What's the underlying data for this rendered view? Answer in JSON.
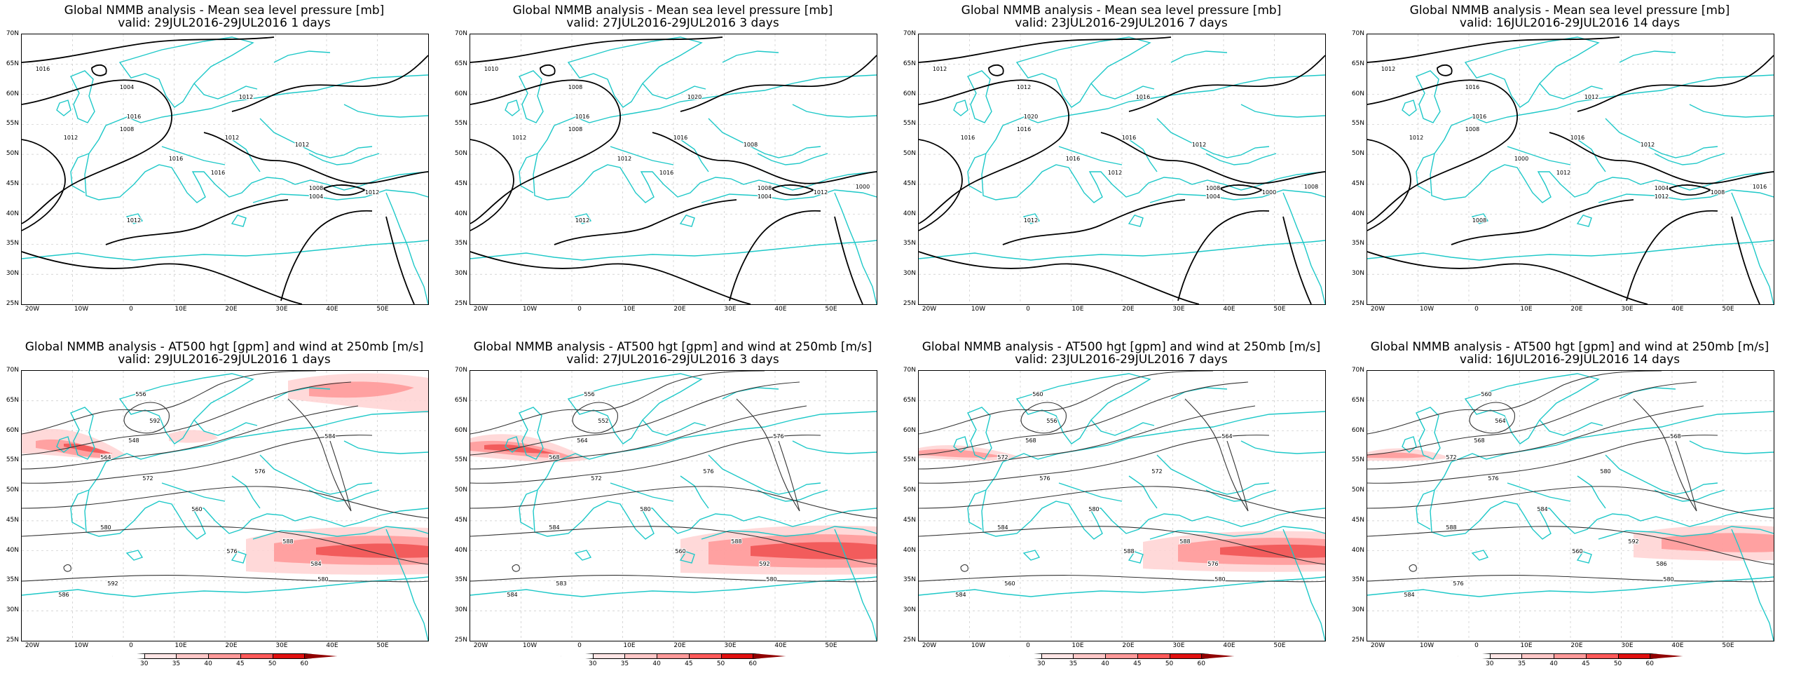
{
  "colors": {
    "coast": "#1ec8c8",
    "contour": "#000000",
    "grid": "#c8c8c8",
    "wind_light": "#ffd2d2",
    "wind_mid": "#ff9696",
    "wind_strong": "#f05050"
  },
  "lat_labels": [
    "70N",
    "65N",
    "60N",
    "55N",
    "50N",
    "45N",
    "40N",
    "35N",
    "30N",
    "25N"
  ],
  "lon_labels": [
    "20W",
    "10W",
    "0",
    "10E",
    "20E",
    "30E",
    "40E",
    "50E"
  ],
  "colorbar": {
    "labels": [
      "30",
      "35",
      "40",
      "45",
      "50",
      "60"
    ],
    "colors": [
      "#ffffff",
      "#ffe6e6",
      "#ffc8c8",
      "#ff9a9a",
      "#ff5a5a",
      "#e01010",
      "#900000"
    ]
  },
  "panels": [
    {
      "title": "Global NMMB analysis - Mean sea level pressure [mb]",
      "valid": "valid: 29JUL2016-29JUL2016   1 days",
      "contour_labels": [
        "1016",
        "1004",
        "1008",
        "1012",
        "1016",
        "1012",
        "1012",
        "1016",
        "1012",
        "1008",
        "1004",
        "1012",
        "1016",
        "1012"
      ]
    },
    {
      "title": "Global NMMB analysis - Mean sea level pressure [mb]",
      "valid": "valid: 27JUL2016-29JUL2016   3 days",
      "contour_labels": [
        "1010",
        "1008",
        "1008",
        "1012",
        "1016",
        "1020",
        "1016",
        "1016",
        "1012",
        "1008",
        "1004",
        "1012",
        "1012",
        "1008",
        "1000"
      ]
    },
    {
      "title": "Global NMMB analysis - Mean sea level pressure [mb]",
      "valid": "valid: 23JUL2016-29JUL2016   7 days",
      "contour_labels": [
        "1012",
        "1012",
        "1016",
        "1016",
        "1020",
        "1016",
        "1016",
        "1012",
        "1012",
        "1008",
        "1004",
        "1000",
        "1016",
        "1012",
        "1008"
      ]
    },
    {
      "title": "Global NMMB analysis - Mean sea level pressure [mb]",
      "valid": "valid: 16JUL2016-29JUL2016   14 days",
      "contour_labels": [
        "1012",
        "1016",
        "1008",
        "1012",
        "1016",
        "1012",
        "1016",
        "1012",
        "1008",
        "1004",
        "1012",
        "1008",
        "1000",
        "1012",
        "1016"
      ]
    },
    {
      "title": "Global NMMB analysis - AT500 hgt [gpm] and wind at 250mb [m/s]",
      "valid": "valid: 29JUL2016-29JUL2016   1 days",
      "contour_labels": [
        "556",
        "592",
        "548",
        "564",
        "572",
        "576",
        "560",
        "580",
        "588",
        "584",
        "580",
        "586",
        "592",
        "584",
        "576"
      ]
    },
    {
      "title": "Global NMMB analysis - AT500 hgt [gpm] and wind at 250mb [m/s]",
      "valid": "valid: 27JUL2016-29JUL2016   3 days",
      "contour_labels": [
        "556",
        "552",
        "564",
        "568",
        "572",
        "576",
        "580",
        "584",
        "588",
        "592",
        "580",
        "584",
        "583",
        "576",
        "560"
      ]
    },
    {
      "title": "Global NMMB analysis - AT500 hgt [gpm] and wind at 250mb [m/s]",
      "valid": "valid: 23JUL2016-29JUL2016   7 days",
      "contour_labels": [
        "560",
        "556",
        "568",
        "572",
        "576",
        "572",
        "580",
        "584",
        "588",
        "576",
        "580",
        "584",
        "560",
        "564",
        "588"
      ]
    },
    {
      "title": "Global NMMB analysis - AT500 hgt [gpm] and wind at 250mb [m/s]",
      "valid": "valid: 16JUL2016-29JUL2016   14 days",
      "contour_labels": [
        "560",
        "564",
        "568",
        "572",
        "576",
        "580",
        "584",
        "588",
        "592",
        "586",
        "580",
        "584",
        "576",
        "568",
        "560"
      ]
    }
  ]
}
